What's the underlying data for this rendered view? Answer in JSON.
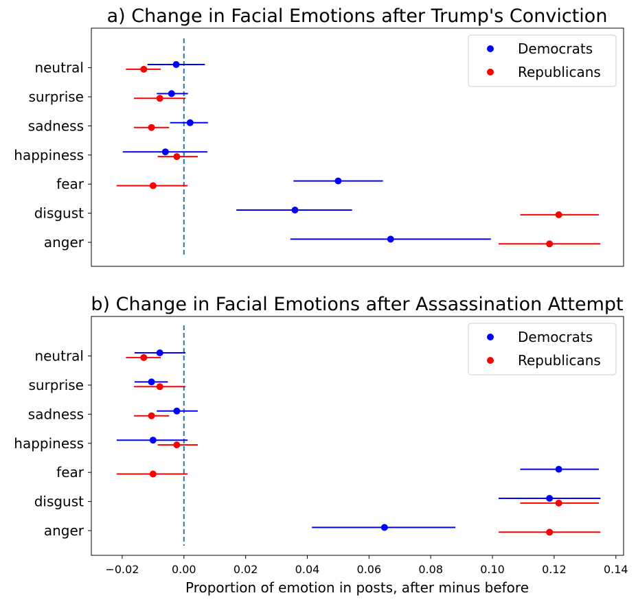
{
  "chart_data": [
    {
      "type": "scatter",
      "title": "a) Change in Facial Emotions after Trump's Conviction",
      "categories": [
        "anger",
        "disgust",
        "fear",
        "happiness",
        "sadness",
        "surprise",
        "neutral"
      ],
      "series": [
        {
          "name": "Democrats",
          "color": "#0000ff",
          "points": [
            {
              "category": "anger",
              "value": 0.067,
              "ci": [
                0.0345,
                0.0995
              ]
            },
            {
              "category": "disgust",
              "value": 0.036,
              "ci": [
                0.017,
                0.0545
              ]
            },
            {
              "category": "fear",
              "value": 0.05,
              "ci": [
                0.0355,
                0.0645
              ]
            },
            {
              "category": "happiness",
              "value": -0.006,
              "ci": [
                -0.0198,
                0.0076
              ]
            },
            {
              "category": "sadness",
              "value": 0.002,
              "ci": [
                -0.0045,
                0.0078
              ]
            },
            {
              "category": "surprise",
              "value": -0.004,
              "ci": [
                -0.0088,
                0.0013
              ]
            },
            {
              "category": "neutral",
              "value": -0.0025,
              "ci": [
                -0.0118,
                0.0068
              ]
            }
          ]
        },
        {
          "name": "Republicans",
          "color": "#ff0000",
          "points": [
            {
              "category": "anger",
              "value": 0.1185,
              "ci": [
                0.102,
                0.135
              ]
            },
            {
              "category": "disgust",
              "value": 0.1215,
              "ci": [
                0.109,
                0.1345
              ]
            },
            {
              "category": "fear",
              "value": -0.01,
              "ci": [
                -0.0218,
                0.0012
              ]
            },
            {
              "category": "happiness",
              "value": -0.0023,
              "ci": [
                -0.0085,
                0.0045
              ]
            },
            {
              "category": "sadness",
              "value": -0.0105,
              "ci": [
                -0.0162,
                -0.0048
              ]
            },
            {
              "category": "surprise",
              "value": -0.0078,
              "ci": [
                -0.0162,
                0.0005
              ]
            },
            {
              "category": "neutral",
              "value": -0.013,
              "ci": [
                -0.0188,
                -0.0075
              ]
            }
          ]
        }
      ],
      "xlim": [
        -0.03,
        0.1425
      ],
      "vline_x": 0,
      "legend": "top-right",
      "grid": false
    },
    {
      "type": "scatter",
      "title": "b) Change in Facial Emotions after Assassination Attempt",
      "categories": [
        "anger",
        "disgust",
        "fear",
        "happiness",
        "sadness",
        "surprise",
        "neutral"
      ],
      "series": [
        {
          "name": "Democrats",
          "color": "#0000ff",
          "points": [
            {
              "category": "anger",
              "value": 0.065,
              "ci": [
                0.0415,
                0.088
              ]
            },
            {
              "category": "disgust",
              "value": 0.1185,
              "ci": [
                0.102,
                0.135
              ]
            },
            {
              "category": "fear",
              "value": 0.1215,
              "ci": [
                0.109,
                0.1345
              ]
            },
            {
              "category": "happiness",
              "value": -0.01,
              "ci": [
                -0.0218,
                0.0012
              ]
            },
            {
              "category": "sadness",
              "value": -0.0023,
              "ci": [
                -0.0088,
                0.0045
              ]
            },
            {
              "category": "surprise",
              "value": -0.0105,
              "ci": [
                -0.016,
                -0.0052
              ]
            },
            {
              "category": "neutral",
              "value": -0.0078,
              "ci": [
                -0.016,
                0.0005
              ]
            }
          ]
        },
        {
          "name": "Republicans",
          "color": "#ff0000",
          "points": [
            {
              "category": "anger",
              "value": 0.1185,
              "ci": [
                0.102,
                0.135
              ]
            },
            {
              "category": "disgust",
              "value": 0.1215,
              "ci": [
                0.109,
                0.1345
              ]
            },
            {
              "category": "fear",
              "value": -0.01,
              "ci": [
                -0.0218,
                0.0012
              ]
            },
            {
              "category": "happiness",
              "value": -0.0023,
              "ci": [
                -0.0085,
                0.0045
              ]
            },
            {
              "category": "sadness",
              "value": -0.0105,
              "ci": [
                -0.0162,
                -0.0048
              ]
            },
            {
              "category": "surprise",
              "value": -0.0078,
              "ci": [
                -0.0162,
                0.0005
              ]
            },
            {
              "category": "neutral",
              "value": -0.013,
              "ci": [
                -0.0188,
                -0.0075
              ]
            }
          ]
        }
      ],
      "xlim": [
        -0.03,
        0.1425
      ],
      "x_ticks": [
        "−0.02",
        "0.00",
        "0.02",
        "0.04",
        "0.06",
        "0.08",
        "0.10",
        "0.12",
        "0.14"
      ],
      "x_tick_values": [
        -0.02,
        0,
        0.02,
        0.04,
        0.06,
        0.08,
        0.1,
        0.12,
        0.14
      ],
      "xlabel": "Proportion of emotion in posts, after minus before",
      "vline_x": 0,
      "legend": "top-right",
      "grid": false
    }
  ]
}
